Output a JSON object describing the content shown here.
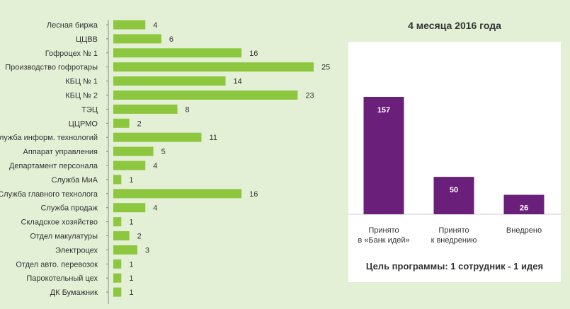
{
  "chart_data": [
    {
      "type": "bar",
      "orientation": "horizontal",
      "categories": [
        "Лесная биржа",
        "ЦЦВВ",
        "Гофроцех № 1",
        "Производство гофротары",
        "КБЦ № 1",
        "КБЦ № 2",
        "ТЭЦ",
        "ЦЦРМО",
        "Служба информ. технологий",
        "Аппарат управления",
        "Департамент персонала",
        "Служба МиА",
        "Служба главного технолога",
        "Служба продаж",
        "Складское хозяйство",
        "Отдел макулатуры",
        "Электроцех",
        "Отдел авто. перевозок",
        "Парокотельный цех",
        "ДК Бумажник"
      ],
      "values": [
        4,
        6,
        16,
        25,
        14,
        23,
        8,
        2,
        11,
        5,
        4,
        1,
        16,
        4,
        1,
        2,
        3,
        1,
        1,
        1
      ],
      "title": "",
      "xlabel": "",
      "ylabel": "",
      "xlim": [
        0,
        25
      ],
      "grid": false,
      "color": "#8dc63f"
    },
    {
      "type": "bar",
      "categories": [
        [
          "Принято",
          "в «Банк идей»"
        ],
        [
          "Принято",
          "к внедрению"
        ],
        [
          "Внедрено"
        ]
      ],
      "values": [
        157,
        50,
        26
      ],
      "title": "4 месяца 2016 года",
      "xlabel": "",
      "ylabel": "",
      "ylim": [
        0,
        157
      ],
      "grid": false,
      "color": "#6a1f7a"
    }
  ],
  "footer": {
    "goal": "Цель программы: 1 сотрудник - 1 идея"
  }
}
